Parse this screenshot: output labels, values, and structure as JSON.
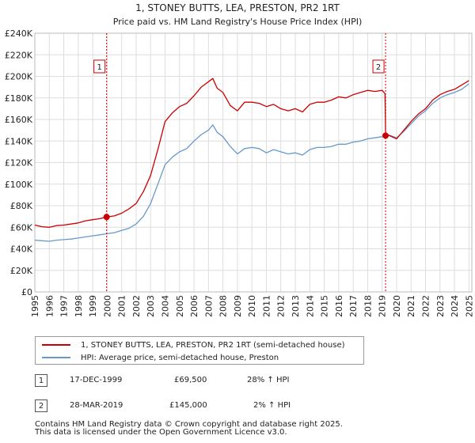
{
  "chart_data": {
    "type": "line",
    "title": "1, STONEY BUTTS, LEA, PRESTON, PR2 1RT",
    "subtitle": "Price paid vs. HM Land Registry's House Price Index (HPI)",
    "xlim": [
      1995,
      2025.2
    ],
    "ylim": [
      0,
      240000
    ],
    "x_ticks": [
      "1995",
      "1996",
      "1997",
      "1998",
      "1999",
      "2000",
      "2001",
      "2002",
      "2003",
      "2004",
      "2005",
      "2006",
      "2007",
      "2008",
      "2009",
      "2010",
      "2011",
      "2012",
      "2013",
      "2014",
      "2015",
      "2016",
      "2017",
      "2018",
      "2019",
      "2020",
      "2021",
      "2022",
      "2023",
      "2024",
      "2025"
    ],
    "y_ticks": [
      {
        "value": 0,
        "label": "£0"
      },
      {
        "value": 20000,
        "label": "£20K"
      },
      {
        "value": 40000,
        "label": "£40K"
      },
      {
        "value": 60000,
        "label": "£60K"
      },
      {
        "value": 80000,
        "label": "£80K"
      },
      {
        "value": 100000,
        "label": "£100K"
      },
      {
        "value": 120000,
        "label": "£120K"
      },
      {
        "value": 140000,
        "label": "£140K"
      },
      {
        "value": 160000,
        "label": "£160K"
      },
      {
        "value": 180000,
        "label": "£180K"
      },
      {
        "value": 200000,
        "label": "£200K"
      },
      {
        "value": 220000,
        "label": "£220K"
      },
      {
        "value": 240000,
        "label": "£240K"
      }
    ],
    "grid": true,
    "series": [
      {
        "name": "1, STONEY BUTTS, LEA, PRESTON, PR2 1RT (semi-detached house)",
        "color": "#cc0000",
        "x": [
          1995.0,
          1995.5,
          1996.0,
          1996.5,
          1997.0,
          1997.5,
          1998.0,
          1998.5,
          1999.0,
          1999.5,
          1999.96,
          2000.5,
          2001.0,
          2001.5,
          2002.0,
          2002.5,
          2003.0,
          2003.5,
          2004.0,
          2004.5,
          2005.0,
          2005.5,
          2006.0,
          2006.5,
          2007.0,
          2007.3,
          2007.6,
          2008.0,
          2008.5,
          2009.0,
          2009.5,
          2010.0,
          2010.5,
          2011.0,
          2011.5,
          2012.0,
          2012.5,
          2013.0,
          2013.5,
          2014.0,
          2014.5,
          2015.0,
          2015.5,
          2016.0,
          2016.5,
          2017.0,
          2017.5,
          2018.0,
          2018.5,
          2019.0,
          2019.2,
          2019.24,
          2019.5,
          2020.0,
          2020.5,
          2021.0,
          2021.5,
          2022.0,
          2022.5,
          2023.0,
          2023.5,
          2024.0,
          2024.5,
          2025.0
        ],
        "values": [
          62000,
          60500,
          60000,
          61500,
          62000,
          63000,
          64000,
          66000,
          67000,
          68000,
          69500,
          70500,
          73000,
          77000,
          82000,
          93000,
          108000,
          132000,
          158000,
          166000,
          172000,
          175000,
          182000,
          190000,
          195000,
          198000,
          189000,
          185000,
          173000,
          168000,
          176000,
          176000,
          175000,
          172000,
          174000,
          170000,
          168000,
          170000,
          167000,
          174000,
          176000,
          176000,
          178000,
          181000,
          180000,
          183000,
          185000,
          187000,
          186000,
          187000,
          184000,
          145000,
          145000,
          142000,
          150000,
          158000,
          165000,
          170000,
          178000,
          183000,
          186000,
          188000,
          192000,
          196000
        ]
      },
      {
        "name": "HPI: Average price, semi-detached house, Preston",
        "color": "#6699cc",
        "x": [
          1995.0,
          1995.5,
          1996.0,
          1996.5,
          1997.0,
          1997.5,
          1998.0,
          1998.5,
          1999.0,
          1999.5,
          2000.0,
          2000.5,
          2001.0,
          2001.5,
          2002.0,
          2002.5,
          2003.0,
          2003.5,
          2004.0,
          2004.5,
          2005.0,
          2005.5,
          2006.0,
          2006.5,
          2007.0,
          2007.3,
          2007.6,
          2008.0,
          2008.5,
          2009.0,
          2009.5,
          2010.0,
          2010.5,
          2011.0,
          2011.5,
          2012.0,
          2012.5,
          2013.0,
          2013.5,
          2014.0,
          2014.5,
          2015.0,
          2015.5,
          2016.0,
          2016.5,
          2017.0,
          2017.5,
          2018.0,
          2018.5,
          2019.0,
          2019.24,
          2019.5,
          2020.0,
          2020.5,
          2021.0,
          2021.5,
          2022.0,
          2022.5,
          2023.0,
          2023.5,
          2024.0,
          2024.5,
          2025.0
        ],
        "values": [
          48000,
          47500,
          47000,
          48000,
          48500,
          49000,
          50000,
          51000,
          52000,
          53000,
          54000,
          55000,
          57000,
          59000,
          63000,
          70000,
          82000,
          100000,
          118000,
          125000,
          130000,
          133000,
          140000,
          146000,
          150000,
          155000,
          148000,
          144000,
          135000,
          128000,
          133000,
          134000,
          133000,
          129000,
          132000,
          130000,
          128000,
          129000,
          127000,
          132000,
          134000,
          134000,
          135000,
          137000,
          137000,
          139000,
          140000,
          142000,
          143000,
          144000,
          145000,
          145500,
          143000,
          149000,
          156000,
          163000,
          168000,
          175000,
          180000,
          183000,
          185000,
          188000,
          193000
        ]
      }
    ],
    "annotations": [
      {
        "label": "1",
        "x": 1999.96,
        "value": 69500
      },
      {
        "label": "2",
        "x": 2019.24,
        "value": 145000
      }
    ]
  },
  "legend": {
    "items": [
      {
        "label": "1, STONEY BUTTS, LEA, PRESTON, PR2 1RT (semi-detached house)",
        "color": "#cc0000"
      },
      {
        "label": "HPI: Average price, semi-detached house, Preston",
        "color": "#6699cc"
      }
    ]
  },
  "transactions": [
    {
      "num": "1",
      "date": "17-DEC-1999",
      "price": "£69,500",
      "hpi": "28% ↑ HPI"
    },
    {
      "num": "2",
      "date": "28-MAR-2019",
      "price": "£145,000",
      "hpi": "2% ↑ HPI"
    }
  ],
  "footer": {
    "line1": "Contains HM Land Registry data © Crown copyright and database right 2025.",
    "line2": "This data is licensed under the Open Government Licence v3.0."
  }
}
